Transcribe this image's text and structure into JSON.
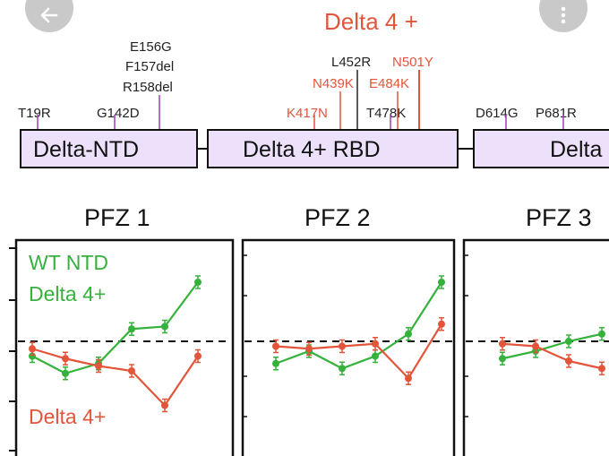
{
  "header": {
    "title": "Delta 4 +"
  },
  "nav": {
    "back_icon": "arrow-left-icon",
    "more_icon": "more-vertical-icon"
  },
  "mutations": {
    "left_stack": [
      "E156G",
      "F157del",
      "R158del"
    ],
    "top_center": [
      "L452R",
      "N501Y"
    ],
    "mid_center": [
      "N439K",
      "E484K"
    ],
    "row": [
      {
        "label": "T19R",
        "color": "#222222"
      },
      {
        "label": "G142D",
        "color": "#222222"
      },
      {
        "label": "K417N",
        "color": "#e2553a"
      },
      {
        "label": "T478K",
        "color": "#222222"
      },
      {
        "label": "D614G",
        "color": "#222222"
      },
      {
        "label": "P681R",
        "color": "#222222"
      }
    ]
  },
  "domains": [
    {
      "label": "Delta-NTD"
    },
    {
      "label": "Delta 4+ RBD"
    },
    {
      "label": "Delta"
    }
  ],
  "panels": [
    {
      "title": "PFZ 1"
    },
    {
      "title": "PFZ 2"
    },
    {
      "title": "PFZ 3"
    }
  ],
  "legend": {
    "green": "WT NTD",
    "green2": "Delta 4+",
    "red": "Delta 4+"
  },
  "colors": {
    "green": "#35b23b",
    "red": "#e2553a",
    "purple": "#9b3fb8",
    "domain_fill": "#ece0fb"
  },
  "chart_data": {
    "type": "line",
    "x": [
      1,
      2,
      3,
      4,
      5,
      6
    ],
    "reference": 0,
    "panels": [
      {
        "title": "PFZ 1",
        "series": [
          {
            "name": "WT NTD",
            "values": [
              -0.3,
              -0.65,
              -0.45,
              0.25,
              0.3,
              1.2
            ]
          },
          {
            "name": "Delta 4+",
            "values": [
              -0.15,
              -0.35,
              -0.5,
              -0.6,
              -1.3,
              -0.3
            ]
          }
        ]
      },
      {
        "title": "PFZ 2",
        "series": [
          {
            "name": "WT NTD",
            "values": [
              -0.45,
              -0.2,
              -0.55,
              -0.3,
              0.15,
              1.2
            ]
          },
          {
            "name": "Delta 4+",
            "values": [
              -0.1,
              -0.15,
              -0.1,
              -0.05,
              -0.75,
              0.35
            ]
          }
        ]
      },
      {
        "title": "PFZ 3",
        "series": [
          {
            "name": "WT NTD",
            "values": [
              -0.35,
              -0.2,
              0.0,
              0.15
            ]
          },
          {
            "name": "Delta 4+",
            "values": [
              -0.05,
              -0.1,
              -0.4,
              -0.55
            ]
          }
        ]
      }
    ]
  }
}
